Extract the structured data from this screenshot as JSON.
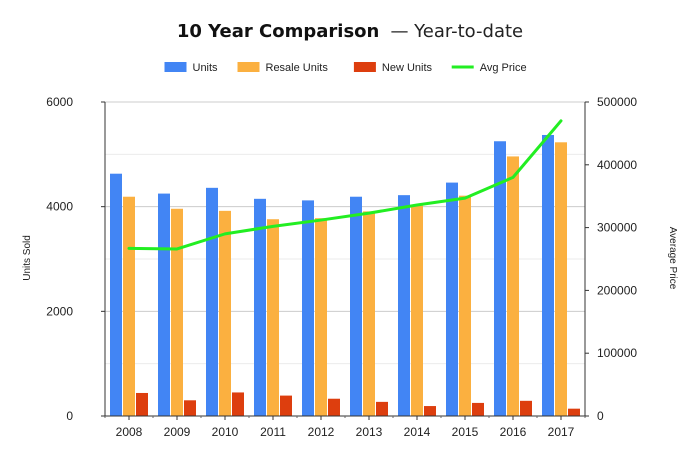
{
  "chart_data": {
    "type": "bar",
    "title": "10 Year Comparison",
    "subtitle": "— Year-to-date",
    "categories": [
      "2008",
      "2009",
      "2010",
      "2011",
      "2012",
      "2013",
      "2014",
      "2015",
      "2016",
      "2017"
    ],
    "series": [
      {
        "name": "Units",
        "type": "bar",
        "axis": "left",
        "color": "#4285f4",
        "values": [
          4630,
          4250,
          4360,
          4150,
          4120,
          4190,
          4220,
          4460,
          5250,
          5370
        ]
      },
      {
        "name": "Resale Units",
        "type": "bar",
        "axis": "left",
        "color": "#fbb040",
        "values": [
          4190,
          3960,
          3920,
          3760,
          3780,
          3910,
          4020,
          4210,
          4960,
          5230
        ]
      },
      {
        "name": "New Units",
        "type": "bar",
        "axis": "left",
        "color": "#dd3e0e",
        "values": [
          440,
          300,
          450,
          390,
          330,
          270,
          190,
          250,
          290,
          140
        ]
      },
      {
        "name": "Avg Price",
        "type": "line",
        "axis": "right",
        "color": "#22ee22",
        "values": [
          267000,
          266000,
          290000,
          302000,
          312000,
          323000,
          336000,
          347000,
          380000,
          470000
        ]
      }
    ],
    "ylabel": "Units Sold",
    "y2label": "Average Price",
    "ylim": [
      0,
      6000
    ],
    "y2lim": [
      0,
      500000
    ],
    "yticks": [
      "0",
      "2000",
      "4000",
      "6000"
    ],
    "y2ticks": [
      "0",
      "100000",
      "200000",
      "300000",
      "400000",
      "500000"
    ],
    "grid": true,
    "legend": "top-center"
  }
}
